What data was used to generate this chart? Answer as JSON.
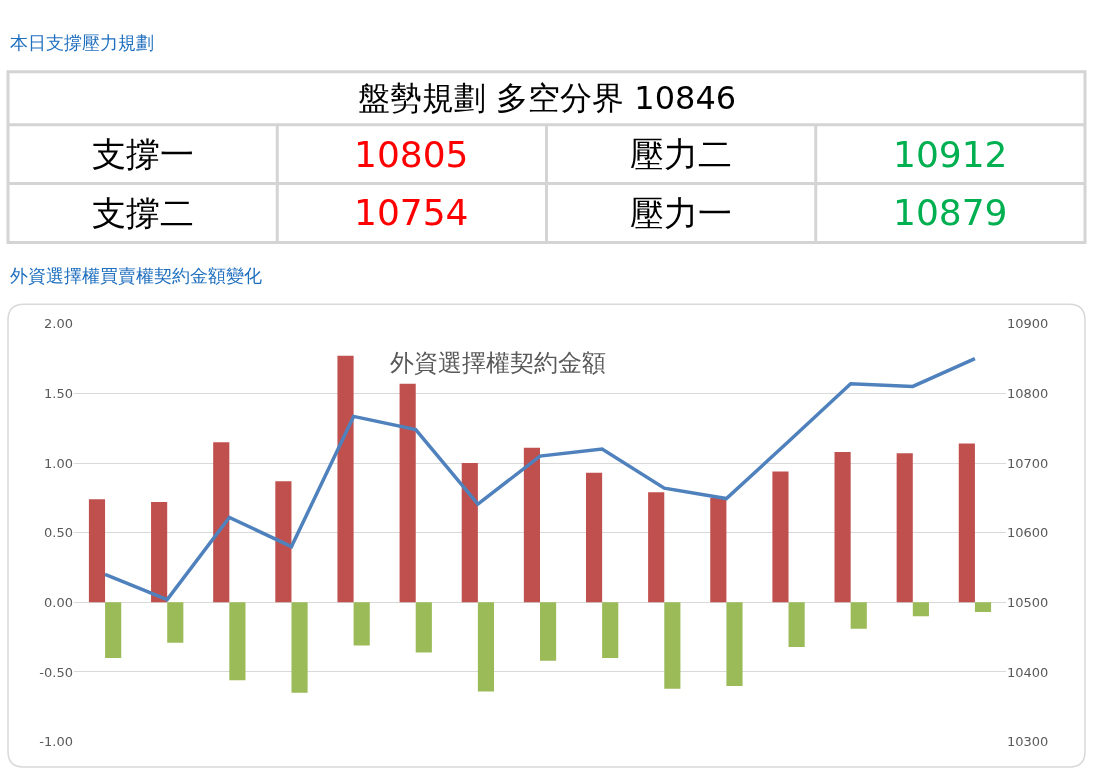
{
  "chart_data": [
    {
      "type": "other",
      "title": "本日支撐壓力規劃",
      "subtitle": "盤勢規劃 多空分界 10846",
      "categories": [
        "支撐一",
        "壓力二",
        "支撐二",
        "壓力一"
      ],
      "values": [
        10805,
        10912,
        10754,
        10879
      ],
      "colors": [
        "#ff0000",
        "#00b050",
        "#ff0000",
        "#00b050"
      ],
      "data_labels": true
    },
    {
      "type": "bar",
      "title": "外資選擇權買賣權契約金額變化",
      "subtitle": "外資選擇權契約金額",
      "categories": [
        null,
        null,
        null,
        null,
        null,
        null,
        null,
        null,
        null,
        null,
        null,
        null,
        null,
        null,
        null
      ],
      "series": [
        {
          "color": "#c0504d",
          "values": [
            0.74,
            0.72,
            1.15,
            0.87,
            1.77,
            1.57,
            1.0,
            1.11,
            0.93,
            0.79,
            0.75,
            0.94,
            1.08,
            1.07,
            1.14
          ]
        },
        {
          "color": "#9bbb59",
          "values": [
            -0.4,
            -0.29,
            -0.56,
            -0.65,
            -0.31,
            -0.36,
            -0.64,
            -0.42,
            -0.4,
            -0.62,
            -0.6,
            -0.32,
            -0.19,
            -0.1,
            -0.07
          ]
        },
        {
          "type": "line",
          "axis": "y2",
          "color": "#4f81bd",
          "values": [
            10540,
            10504,
            10622,
            10580,
            10767,
            10748,
            10641,
            10710,
            10720,
            10664,
            10649,
            10731,
            10814,
            10810,
            10850
          ]
        }
      ],
      "ylim": [
        -1,
        2
      ],
      "yticks": [
        {
          "value": -1,
          "label": "-1.00"
        },
        {
          "value": -0.5,
          "label": "-0.50"
        },
        {
          "value": 0,
          "label": "0.00"
        },
        {
          "value": 0.5,
          "label": "0.50"
        },
        {
          "value": 1,
          "label": "1.00"
        },
        {
          "value": 1.5,
          "label": "1.50"
        },
        {
          "value": 2,
          "label": "2.00"
        }
      ],
      "y2lim": [
        10300,
        10900
      ],
      "y2ticks": [
        10300,
        10400,
        10500,
        10600,
        10700,
        10800,
        10900
      ],
      "grid": "y",
      "marker": "none"
    }
  ]
}
